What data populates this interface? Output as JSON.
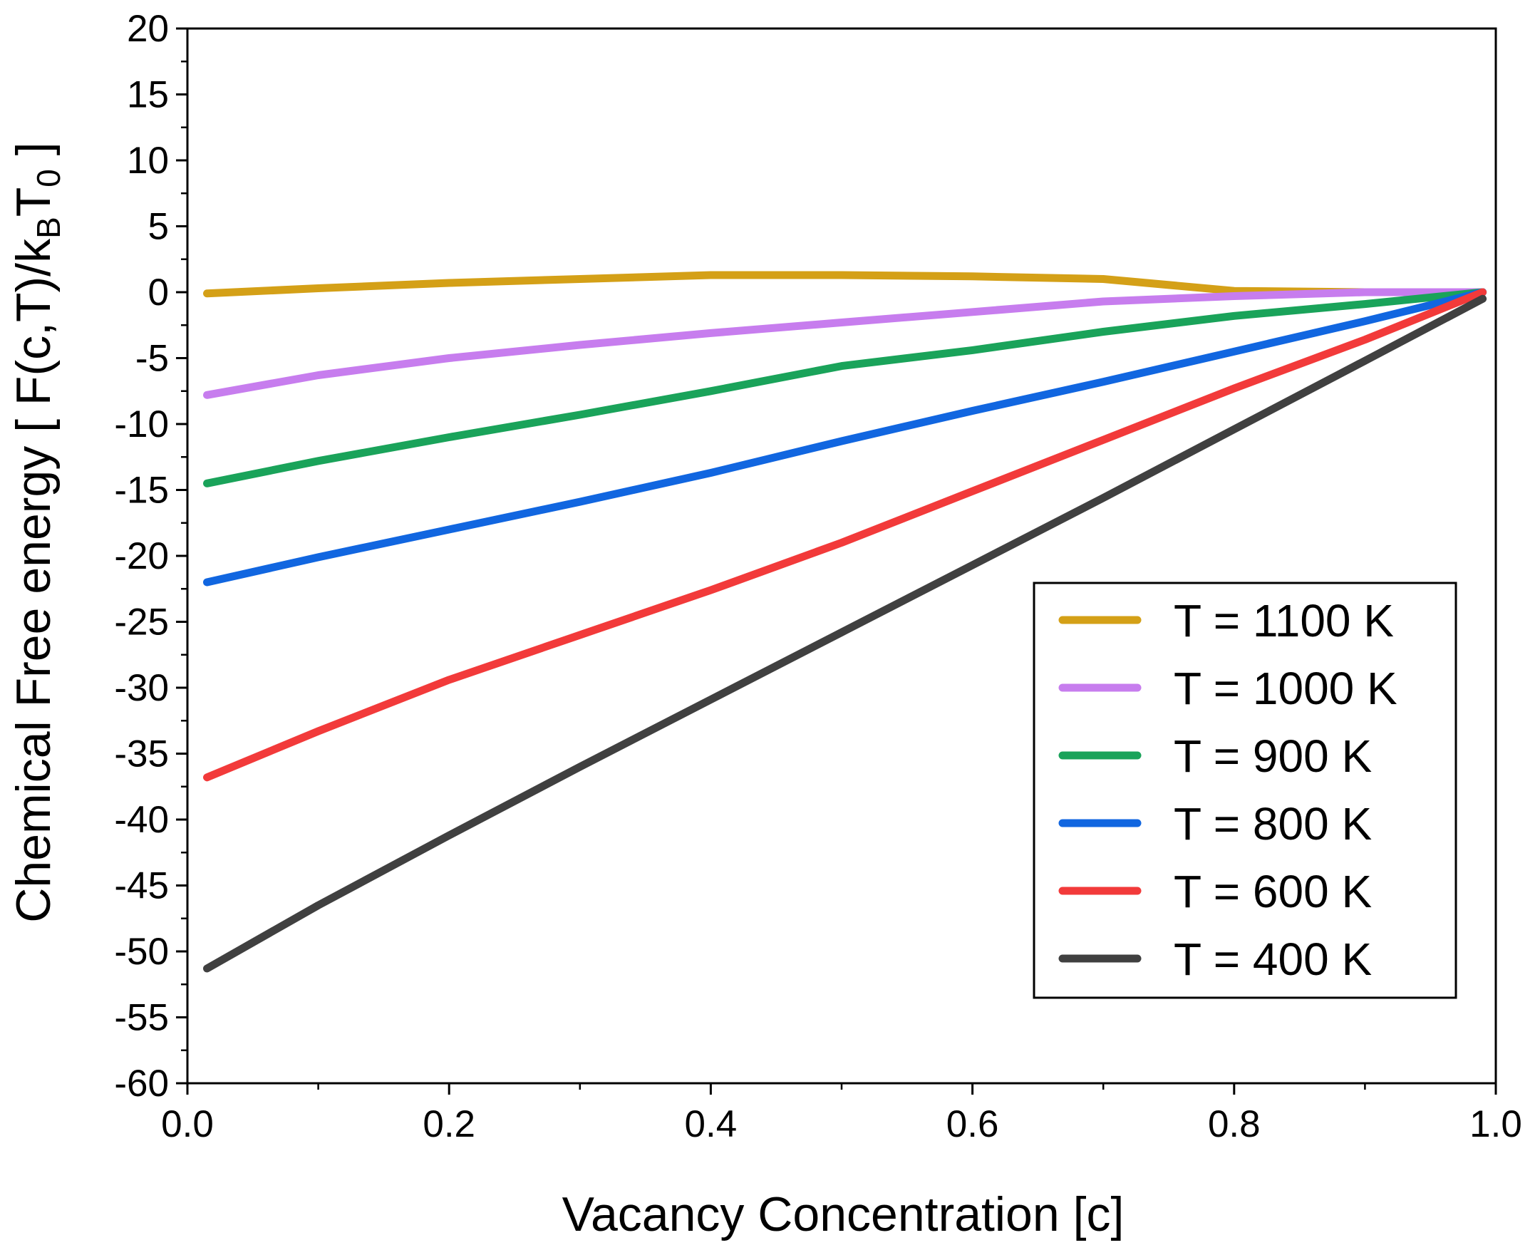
{
  "chart_data": {
    "type": "line",
    "xlabel": "Vacancy Concentration [c]",
    "ylabel": {
      "prefix": "Chemical Free energy [ F(c,T)/k",
      "sub_b": "B",
      "mid": "T",
      "sub_0": "0",
      "suffix": " ]"
    },
    "xlim": [
      0,
      1
    ],
    "ylim": [
      -60,
      20
    ],
    "x_ticks": [
      0,
      0.2,
      0.4,
      0.6,
      0.8,
      1.0
    ],
    "x_tick_labels": [
      "0.0",
      "0.2",
      "0.4",
      "0.6",
      "0.8",
      "1.0"
    ],
    "y_ticks": [
      20,
      15,
      10,
      5,
      0,
      -5,
      -10,
      -15,
      -20,
      -25,
      -30,
      -35,
      -40,
      -45,
      -50,
      -55,
      -60
    ],
    "y_tick_labels": [
      "20",
      "15",
      "10",
      "5",
      "0",
      "-5",
      "-10",
      "-15",
      "-20",
      "-25",
      "-30",
      "-35",
      "-40",
      "-45",
      "-50",
      "-55",
      "-60"
    ],
    "legend_position": "lower-right",
    "series": [
      {
        "name": "T = 1100 K",
        "color": "#d4a017",
        "x": [
          0.015,
          0.1,
          0.2,
          0.3,
          0.4,
          0.5,
          0.6,
          0.7,
          0.8,
          0.9,
          0.99
        ],
        "y": [
          -0.1,
          0.3,
          0.7,
          1.0,
          1.3,
          1.3,
          1.2,
          1.0,
          0.1,
          0.0,
          0.0
        ]
      },
      {
        "name": "T = 1000 K",
        "color": "#c77dee",
        "x": [
          0.015,
          0.1,
          0.2,
          0.3,
          0.4,
          0.5,
          0.6,
          0.7,
          0.8,
          0.9,
          0.99
        ],
        "y": [
          -7.8,
          -6.3,
          -5.0,
          -4.0,
          -3.1,
          -2.3,
          -1.5,
          -0.7,
          -0.3,
          0.0,
          0.0
        ]
      },
      {
        "name": "T = 900 K",
        "color": "#1aa35a",
        "x": [
          0.015,
          0.1,
          0.2,
          0.3,
          0.4,
          0.5,
          0.6,
          0.7,
          0.8,
          0.9,
          0.99
        ],
        "y": [
          -14.5,
          -12.8,
          -11.0,
          -9.3,
          -7.5,
          -5.6,
          -4.4,
          -3.0,
          -1.8,
          -0.9,
          0.0
        ]
      },
      {
        "name": "T = 800 K",
        "color": "#1166e0",
        "x": [
          0.015,
          0.1,
          0.2,
          0.3,
          0.4,
          0.5,
          0.6,
          0.7,
          0.8,
          0.9,
          0.99
        ],
        "y": [
          -22.0,
          -20.1,
          -18.0,
          -15.9,
          -13.7,
          -11.3,
          -9.0,
          -6.8,
          -4.5,
          -2.2,
          0.0
        ]
      },
      {
        "name": "T = 600 K",
        "color": "#f23a3a",
        "x": [
          0.015,
          0.1,
          0.2,
          0.3,
          0.4,
          0.5,
          0.6,
          0.7,
          0.8,
          0.9,
          0.99
        ],
        "y": [
          -36.8,
          -33.3,
          -29.4,
          -26.0,
          -22.6,
          -19.0,
          -15.1,
          -11.2,
          -7.3,
          -3.6,
          0.0
        ]
      },
      {
        "name": "T = 400 K",
        "color": "#404040",
        "x": [
          0.015,
          0.1,
          0.2,
          0.3,
          0.4,
          0.5,
          0.6,
          0.7,
          0.8,
          0.9,
          0.99
        ],
        "y": [
          -51.3,
          -46.5,
          -41.2,
          -36.0,
          -30.9,
          -25.8,
          -20.7,
          -15.6,
          -10.4,
          -5.2,
          -0.5
        ]
      }
    ]
  }
}
